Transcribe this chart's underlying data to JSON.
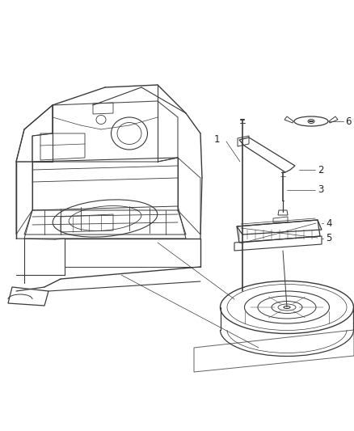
{
  "background_color": "#ffffff",
  "line_color": "#3a3a3a",
  "light_line": "#555555",
  "label_color": "#222222",
  "figure_width": 4.38,
  "figure_height": 5.33,
  "dpi": 100,
  "label_fontsize": 8.5
}
